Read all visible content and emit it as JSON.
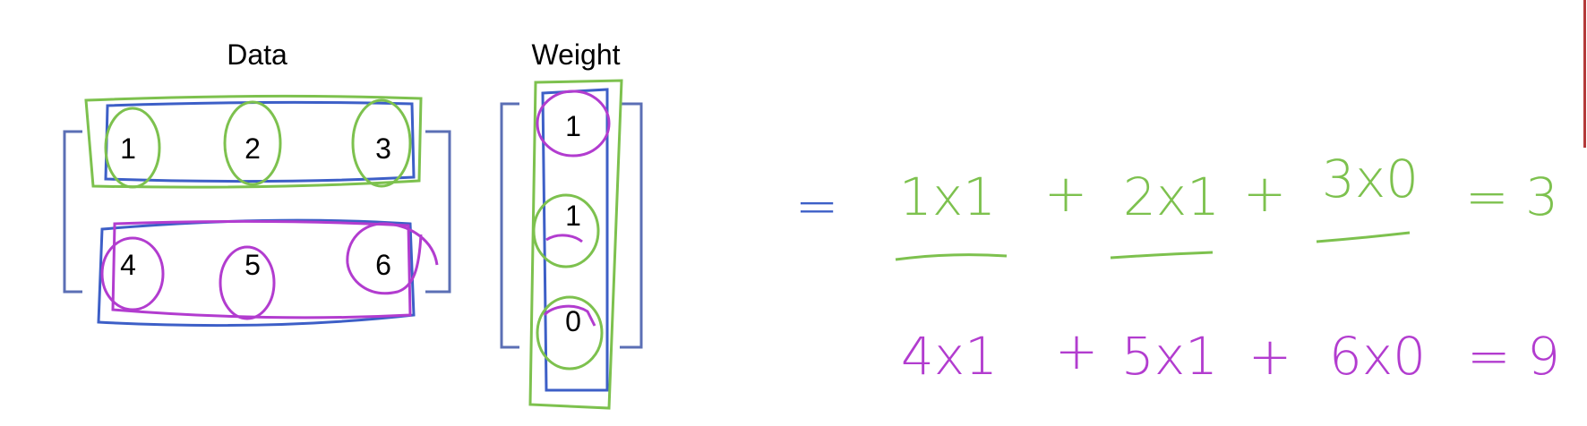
{
  "data_label": "Data",
  "weight_label": "Weight",
  "data_matrix": [
    [
      "1",
      "2",
      "3"
    ],
    [
      "4",
      "5",
      "6"
    ]
  ],
  "weight_vector": [
    "1",
    "1",
    "0"
  ],
  "equals_sign": "=",
  "row1": {
    "t1": "1x1",
    "p1": "+",
    "t2": "2x1",
    "p2": "+",
    "t3": "3x0",
    "eq": "= 3"
  },
  "row2": {
    "t1": "4x1",
    "p1": "+",
    "t2": "5x1",
    "p2": "+",
    "t3": "6x0",
    "eq": "= 9"
  },
  "colors": {
    "green": "#7dc14e",
    "magenta": "#b23ccf",
    "blue": "#3d5fc7",
    "bracket": "#5b6fb5"
  }
}
